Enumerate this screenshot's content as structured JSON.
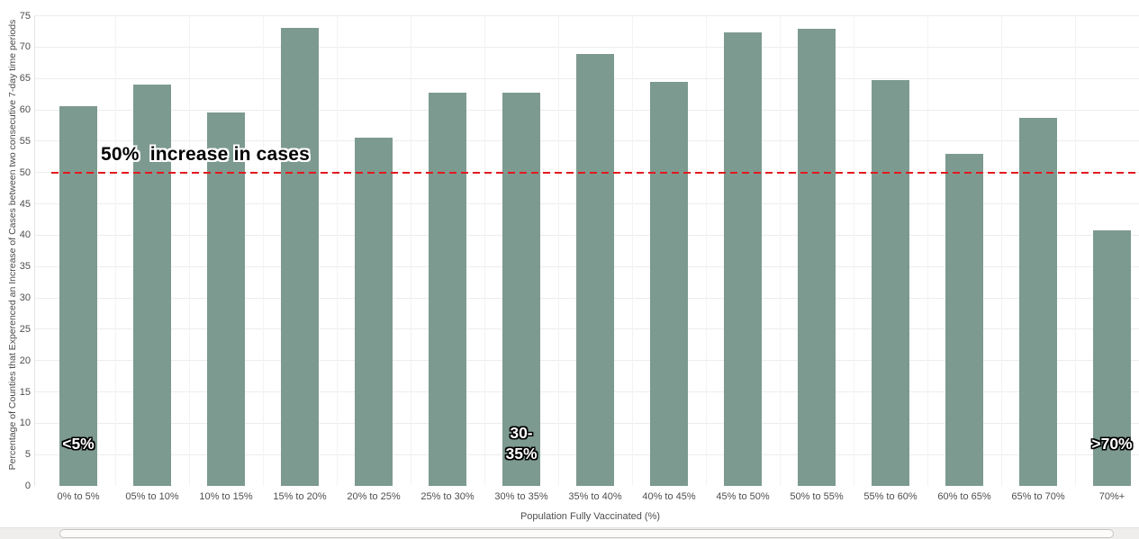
{
  "chart_data": {
    "type": "bar",
    "title": "",
    "xlabel": "Population Fully Vaccinated (%)",
    "ylabel": "Percentage of Counties that Experenced an Increase of Cases between two consecutive 7-day time periods",
    "ylim": [
      0,
      75
    ],
    "y_ticks": [
      0,
      5,
      10,
      15,
      20,
      25,
      30,
      35,
      40,
      45,
      50,
      55,
      60,
      65,
      70,
      75
    ],
    "grid": "horizontal, very light gray",
    "legend": "none",
    "categories": [
      "0% to 5%",
      "05% to 10%",
      "10% to 15%",
      "15% to 20%",
      "20% to 25%",
      "25% to 30%",
      "30% to 35%",
      "35% to 40%",
      "40% to 45%",
      "45% to 50%",
      "50% to 55%",
      "55% to 60%",
      "60% to 65%",
      "65% to 70%",
      "70%+"
    ],
    "values": [
      60.6,
      64.0,
      59.5,
      73.0,
      55.5,
      62.7,
      62.7,
      68.9,
      64.4,
      72.3,
      72.9,
      64.8,
      53.0,
      58.7,
      40.7
    ],
    "bar_color": "#7d9a90",
    "reference_line": {
      "value": 50,
      "style": "dashed",
      "color": "#e2191f",
      "label": "50%  increase in cases"
    },
    "bar_annotations": [
      {
        "category_index": 0,
        "lines": [
          "<5%"
        ]
      },
      {
        "category_index": 6,
        "lines": [
          "30-",
          "35%"
        ]
      },
      {
        "category_index": 14,
        "lines": [
          ">70%"
        ]
      }
    ]
  }
}
